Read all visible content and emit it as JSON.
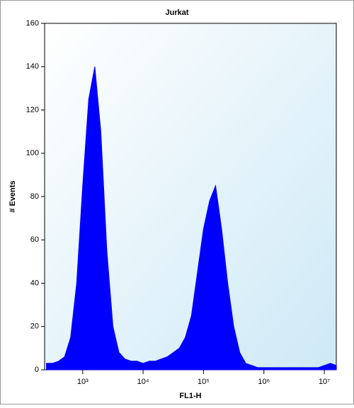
{
  "chart_data": {
    "type": "area",
    "title": "Jurkat",
    "x_label": "FL1-H",
    "y_label": "# Events",
    "x": [
      251,
      316,
      398,
      501,
      631,
      794,
      1000,
      1259,
      1585,
      1995,
      2512,
      3162,
      3981,
      5012,
      6310,
      7943,
      10000,
      12589,
      15849,
      19953,
      25119,
      31623,
      39811,
      50119,
      63096,
      79433,
      100000,
      125893,
      158489,
      199526,
      251189,
      316228,
      398107,
      501187,
      630957,
      794328,
      1000000,
      1258925,
      1584893,
      1995262,
      2511886,
      3162278,
      3981072,
      5011872,
      6309573,
      7943282,
      10000000,
      12589254,
      15848932
    ],
    "values": [
      3,
      3,
      4,
      6,
      15,
      40,
      85,
      125,
      140,
      110,
      55,
      20,
      8,
      5,
      4,
      4,
      3,
      4,
      4,
      5,
      6,
      8,
      10,
      15,
      25,
      45,
      65,
      78,
      85,
      65,
      40,
      20,
      8,
      3,
      2,
      1,
      1,
      1,
      1,
      1,
      1,
      1,
      1,
      1,
      1,
      1,
      2,
      3,
      2
    ],
    "color": "#0000ff",
    "x_log": true,
    "xlim": [
      234,
      15800000
    ],
    "xticks": [
      {
        "value": 1000,
        "label": "10³"
      },
      {
        "value": 10000,
        "label": "10⁴"
      },
      {
        "value": 100000,
        "label": "10⁵"
      },
      {
        "value": 1000000,
        "label": "10⁶"
      },
      {
        "value": 10000000,
        "label": "10⁷"
      }
    ],
    "ylim": [
      0,
      160
    ],
    "yticks": [
      0,
      20,
      40,
      60,
      80,
      100,
      120,
      140,
      160
    ]
  }
}
